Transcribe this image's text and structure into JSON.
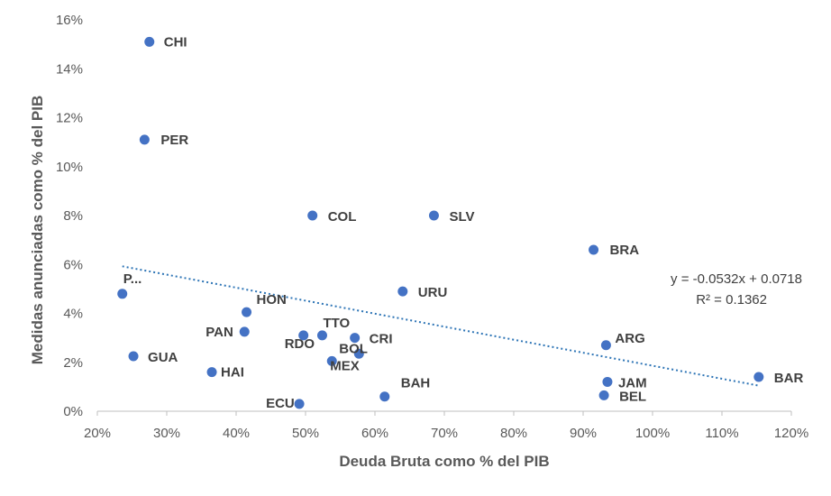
{
  "chart_data": {
    "type": "scatter",
    "title": "",
    "xlabel": "Deuda Bruta como % del PIB",
    "ylabel": "Medidas anunciadas como % del PIB",
    "xlim": [
      0.2,
      1.2
    ],
    "ylim": [
      0,
      0.16
    ],
    "x_ticks": [
      "20%",
      "30%",
      "40%",
      "50%",
      "60%",
      "70%",
      "80%",
      "90%",
      "100%",
      "110%",
      "120%"
    ],
    "y_ticks": [
      "0%",
      "2%",
      "4%",
      "6%",
      "8%",
      "10%",
      "12%",
      "14%",
      "16%"
    ],
    "marker_color": "#4472C4",
    "points": [
      {
        "label": "CHI",
        "x": 0.275,
        "y": 0.151
      },
      {
        "label": "PER",
        "x": 0.268,
        "y": 0.111
      },
      {
        "label": "COL",
        "x": 0.51,
        "y": 0.08
      },
      {
        "label": "SLV",
        "x": 0.685,
        "y": 0.08
      },
      {
        "label": "BRA",
        "x": 0.915,
        "y": 0.066
      },
      {
        "label": "URU",
        "x": 0.64,
        "y": 0.049
      },
      {
        "label": "P...",
        "x": 0.236,
        "y": 0.048
      },
      {
        "label": "HON",
        "x": 0.415,
        "y": 0.0405
      },
      {
        "label": "PAN",
        "x": 0.412,
        "y": 0.0325
      },
      {
        "label": "TTO",
        "x": 0.524,
        "y": 0.031
      },
      {
        "label": "RDO",
        "x": 0.497,
        "y": 0.031
      },
      {
        "label": "CRI",
        "x": 0.571,
        "y": 0.03
      },
      {
        "label": "ARG",
        "x": 0.933,
        "y": 0.027
      },
      {
        "label": "BOL",
        "x": 0.577,
        "y": 0.0235
      },
      {
        "label": "GUA",
        "x": 0.252,
        "y": 0.0225
      },
      {
        "label": "MEX",
        "x": 0.538,
        "y": 0.0205
      },
      {
        "label": "HAI",
        "x": 0.365,
        "y": 0.016
      },
      {
        "label": "BAR",
        "x": 1.153,
        "y": 0.014
      },
      {
        "label": "JAM",
        "x": 0.935,
        "y": 0.012
      },
      {
        "label": "BEL",
        "x": 0.93,
        "y": 0.0065
      },
      {
        "label": "BAH",
        "x": 0.614,
        "y": 0.006
      },
      {
        "label": "ECU",
        "x": 0.491,
        "y": 0.003
      }
    ],
    "trendline": {
      "type": "linear",
      "slope": -0.0532,
      "intercept": 0.0718,
      "x_range": [
        0.236,
        1.153
      ],
      "color": "#2E75B6",
      "style": "dotted",
      "equation": "y = -0.0532x + 0.0718",
      "r_squared": "R² = 0.1362"
    }
  }
}
